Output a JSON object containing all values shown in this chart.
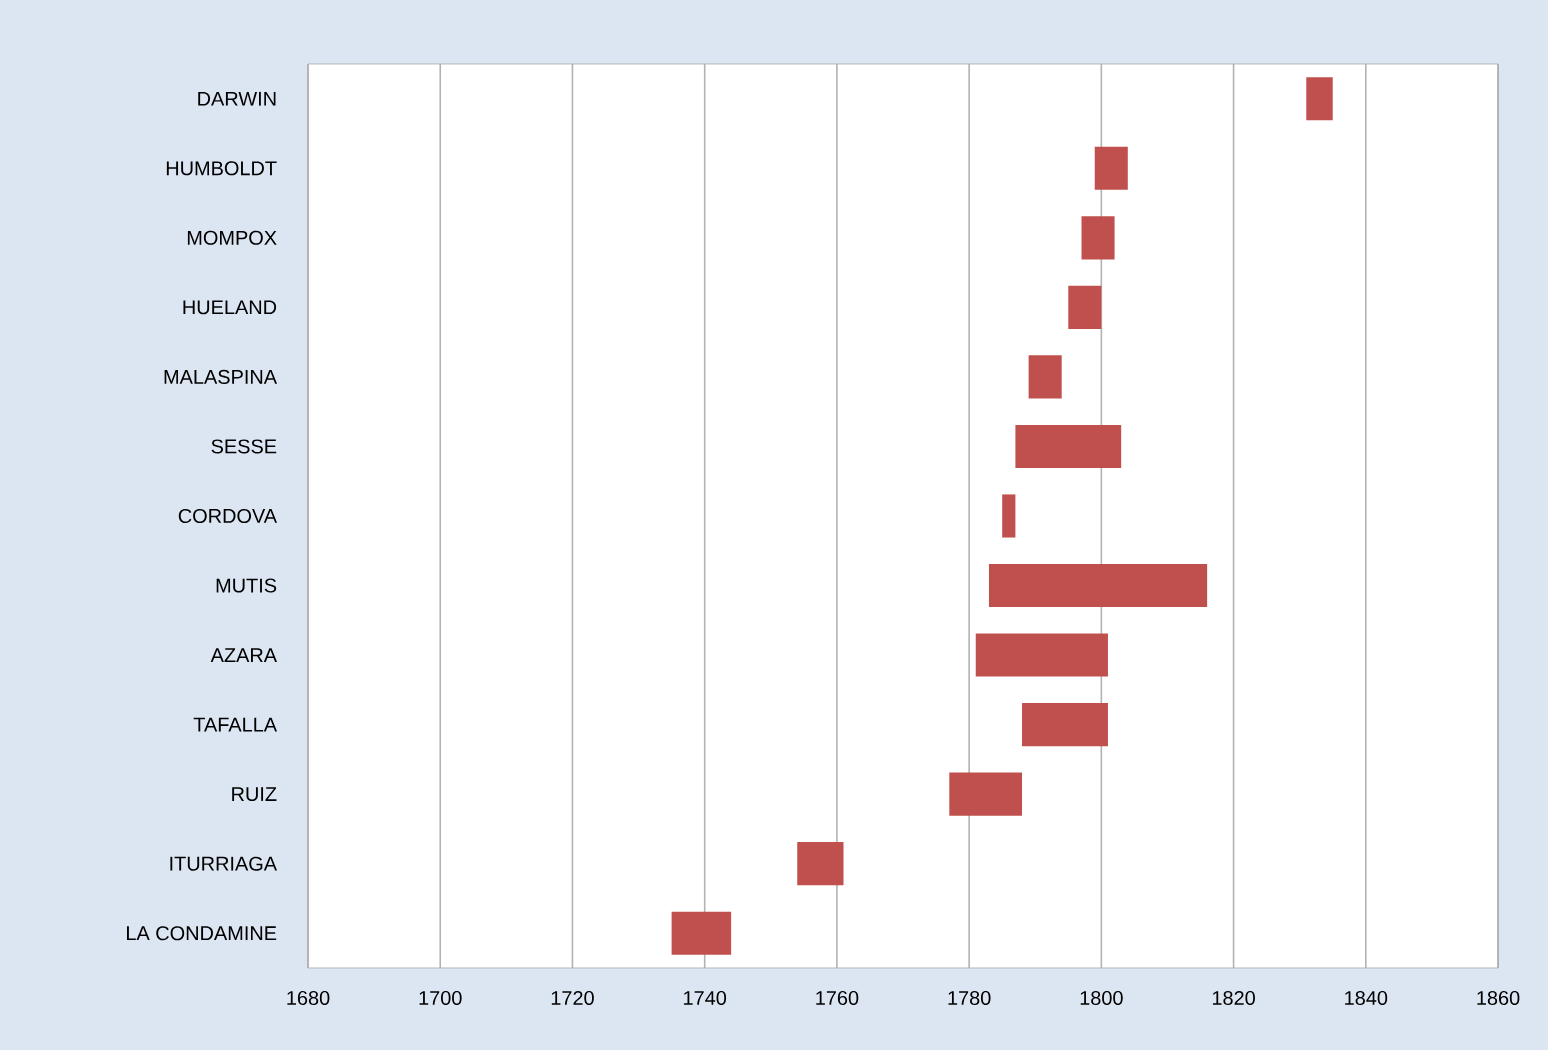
{
  "chart_data": {
    "type": "bar",
    "orientation": "horizontal",
    "categories": [
      "DARWIN",
      "HUMBOLDT",
      "MOMPOX",
      "HUELAND",
      "MALASPINA",
      "SESSE",
      "CORDOVA",
      "MUTIS",
      "AZARA",
      "TAFALLA",
      "RUIZ",
      "ITURRIAGA",
      "LA CONDAMINE"
    ],
    "base": [
      1831,
      1799,
      1797,
      1795,
      1789,
      1787,
      1785,
      1783,
      1781,
      1788,
      1777,
      1754,
      1735
    ],
    "values": [
      4,
      5,
      5,
      5,
      5,
      16,
      2,
      33,
      20,
      13,
      11,
      7,
      9
    ],
    "color": "#c0504d",
    "xlim": [
      1680,
      1860
    ],
    "xticks": [
      1680,
      1700,
      1720,
      1740,
      1760,
      1780,
      1800,
      1820,
      1840,
      1860
    ],
    "grid": "x"
  }
}
